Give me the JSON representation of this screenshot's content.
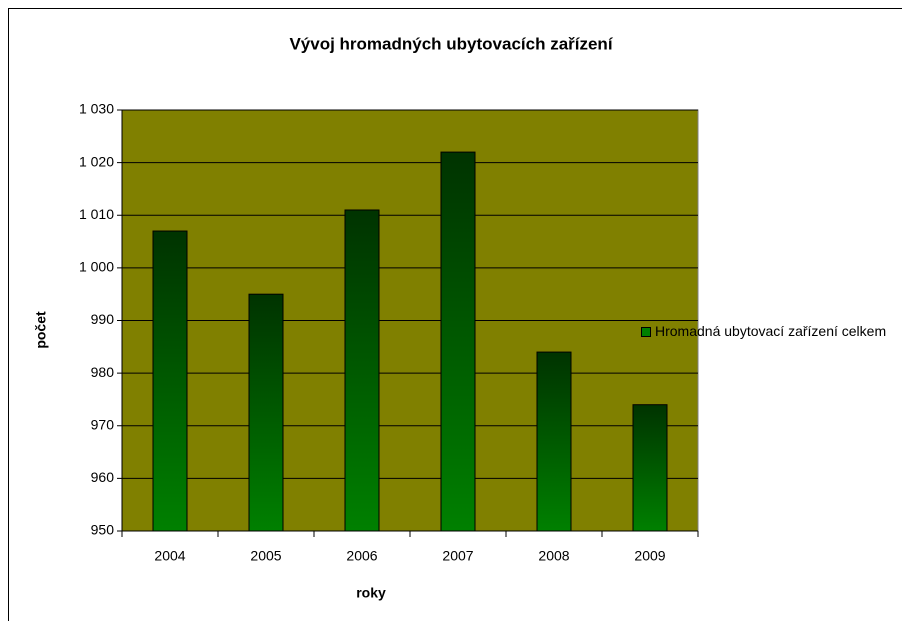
{
  "chart_data": {
    "type": "bar",
    "title": "Vývoj hromadných ubytovacích zařízení",
    "x_label": "roky",
    "y_label": "počet",
    "categories": [
      "2004",
      "2005",
      "2006",
      "2007",
      "2008",
      "2009"
    ],
    "series": [
      {
        "name": "Hromadná ubytovací zařízení celkem",
        "color": "#008000",
        "values": [
          1007,
          995,
          1011,
          1022,
          984,
          974
        ]
      }
    ],
    "ylim": [
      950,
      1030
    ],
    "yticks": [
      950,
      960,
      970,
      980,
      990,
      {
        "value": 1000,
        "label": "1 000"
      },
      {
        "value": 1010,
        "label": "1 010"
      },
      {
        "value": 1020,
        "label": "1 020"
      },
      {
        "value": 1030,
        "label": "1 030"
      }
    ],
    "grid": true,
    "plot_background": "#808000",
    "legend": "right"
  }
}
